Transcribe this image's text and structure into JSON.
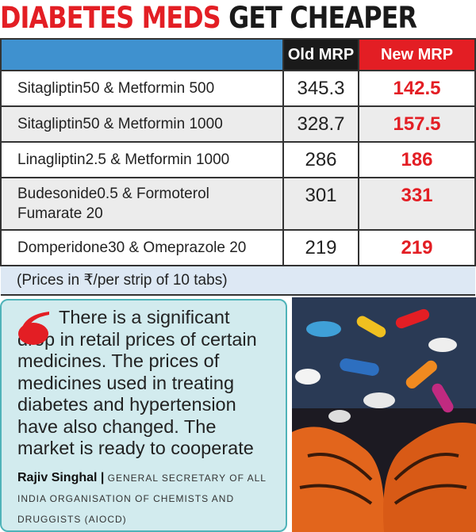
{
  "title": {
    "red": "DIABETES MEDS",
    "black": "GET CHEAPER"
  },
  "table": {
    "headers": [
      "",
      "Old MRP",
      "New MRP"
    ],
    "rows": [
      {
        "drug": "Sitagliptin50 & Metformin 500",
        "old": "345.3",
        "new": "142.5"
      },
      {
        "drug": "Sitagliptin50 & Metformin 1000",
        "old": "328.7",
        "new": "157.5"
      },
      {
        "drug": "Linagliptin2.5 & Metformin 1000",
        "old": "286",
        "new": "186"
      },
      {
        "drug": "Budesonide0.5 & Formoterol Fumarate 20",
        "old": "301",
        "new": "331"
      },
      {
        "drug": "Domperidone30 & Omeprazole 20",
        "old": "219",
        "new": "219"
      }
    ],
    "note": "(Prices in ₹/per strip of 10 tabs)"
  },
  "quote": {
    "text": "There is a significant drop in retail prices of certain medicines. The prices of medicines used in treating diabetes and hypertension have also changed. The market is ready to cooperate",
    "name": "Rajiv Singhal",
    "separator": "|",
    "role": "GENERAL SECRETARY OF ALL INDIA ORGANISATION OF CHEMISTS AND DRUGGISTS (AIOCD)"
  },
  "colors": {
    "red": "#e31e24",
    "blue": "#3f91cf",
    "quote_bg": "#d2ebee"
  }
}
